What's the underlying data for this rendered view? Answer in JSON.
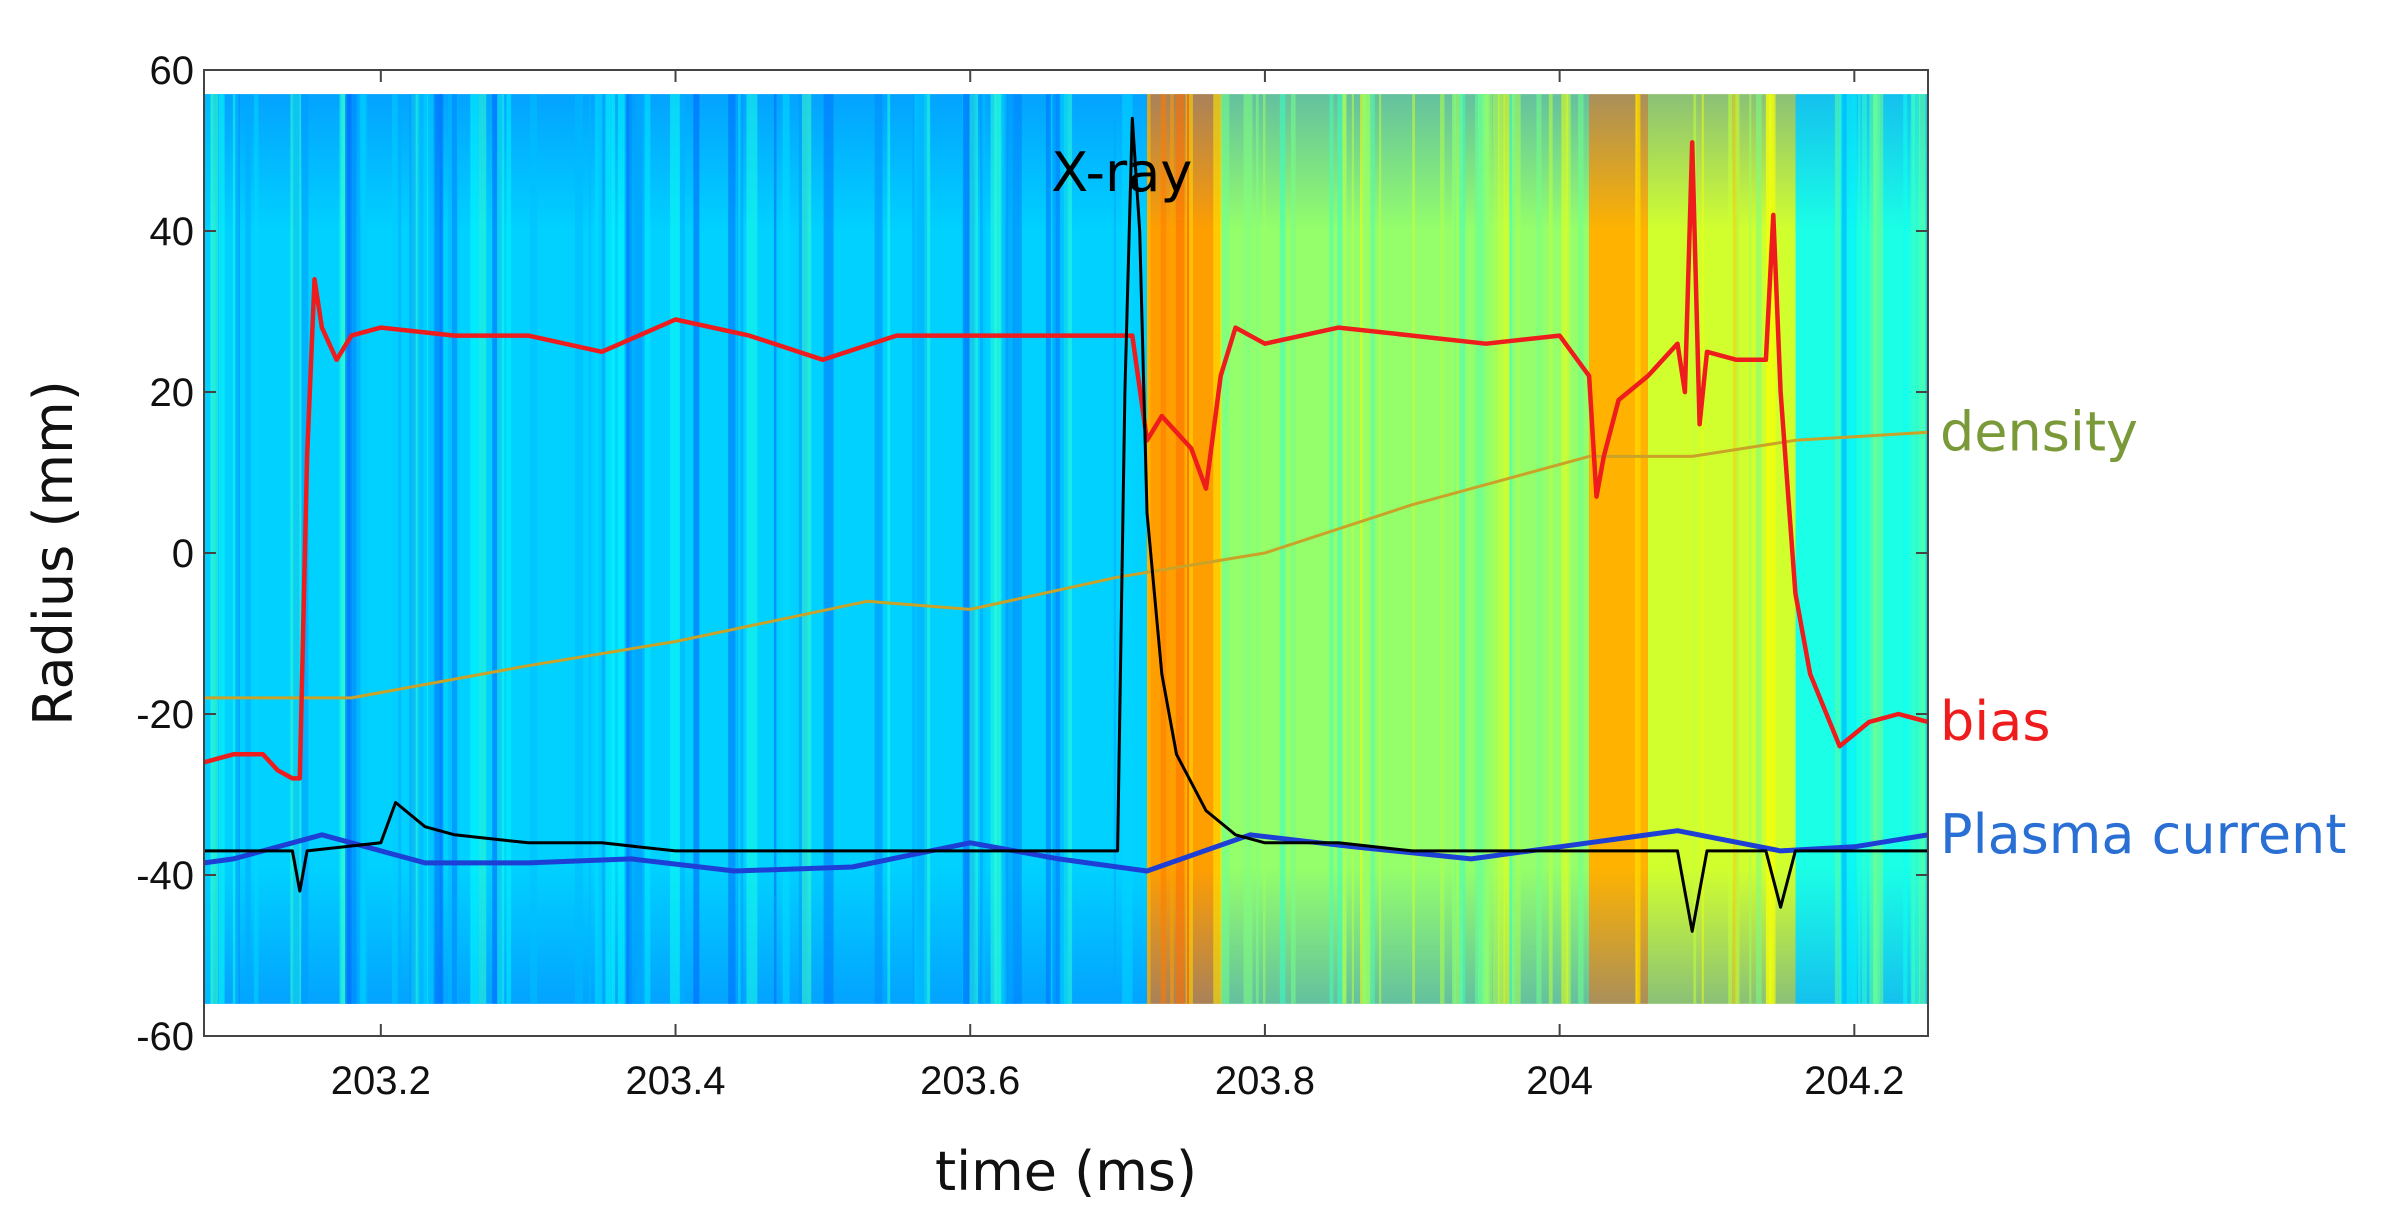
{
  "chart_data": {
    "type": "heatmap",
    "xlabel": "time (ms)",
    "ylabel": "Radius (mm)",
    "xlim": [
      203.08,
      204.25
    ],
    "ylim": [
      -60,
      60
    ],
    "heatmap_ylim": [
      -56,
      57
    ],
    "x_ticks": [
      {
        "value": 203.2,
        "label": "203.2"
      },
      {
        "value": 203.4,
        "label": "203.4"
      },
      {
        "value": 203.6,
        "label": "203.6"
      },
      {
        "value": 203.8,
        "label": "203.8"
      },
      {
        "value": 204.0,
        "label": "204"
      },
      {
        "value": 204.2,
        "label": "204.2"
      }
    ],
    "y_ticks": [
      {
        "value": 60,
        "label": "60"
      },
      {
        "value": 40,
        "label": "40"
      },
      {
        "value": 20,
        "label": "20"
      },
      {
        "value": 0,
        "label": "0"
      },
      {
        "value": -20,
        "label": "-20"
      },
      {
        "value": -40,
        "label": "-40"
      },
      {
        "value": -60,
        "label": "-60"
      }
    ],
    "grid": false,
    "heatmap": {
      "colormap": "jet",
      "description_bands": [
        {
          "from": 203.08,
          "to": 203.72,
          "level": 0.33
        },
        {
          "from": 203.72,
          "to": 203.77,
          "level": 0.72
        },
        {
          "from": 203.77,
          "to": 204.02,
          "level": 0.52
        },
        {
          "from": 204.02,
          "to": 204.06,
          "level": 0.7
        },
        {
          "from": 204.06,
          "to": 204.16,
          "level": 0.58
        },
        {
          "from": 204.16,
          "to": 204.25,
          "level": 0.4
        }
      ]
    },
    "series": [
      {
        "name": "density",
        "color": "#c9a227",
        "label_color": "#7a9a3a",
        "x": [
          203.08,
          203.18,
          203.3,
          203.4,
          203.53,
          203.6,
          203.7,
          203.8,
          203.9,
          204.02,
          204.09,
          204.16,
          204.25
        ],
        "y": [
          -18,
          -18,
          -14,
          -11,
          -6,
          -7,
          -3,
          0,
          6,
          12,
          12,
          14,
          15
        ]
      },
      {
        "name": "bias",
        "color": "#ee1c1c",
        "label_color": "#ee1c1c",
        "x": [
          203.08,
          203.1,
          203.12,
          203.13,
          203.14,
          203.145,
          203.15,
          203.155,
          203.16,
          203.17,
          203.18,
          203.2,
          203.25,
          203.3,
          203.35,
          203.4,
          203.45,
          203.5,
          203.55,
          203.6,
          203.65,
          203.7,
          203.71,
          203.72,
          203.73,
          203.74,
          203.75,
          203.76,
          203.77,
          203.78,
          203.8,
          203.85,
          203.9,
          203.95,
          204.0,
          204.02,
          204.025,
          204.03,
          204.04,
          204.06,
          204.08,
          204.085,
          204.09,
          204.095,
          204.1,
          204.12,
          204.14,
          204.145,
          204.15,
          204.16,
          204.17,
          204.19,
          204.21,
          204.23,
          204.25
        ],
        "y": [
          -26,
          -25,
          -25,
          -27,
          -28,
          -28,
          12,
          34,
          28,
          24,
          27,
          28,
          27,
          27,
          25,
          29,
          27,
          24,
          27,
          27,
          27,
          27,
          27,
          14,
          17,
          15,
          13,
          8,
          22,
          28,
          26,
          28,
          27,
          26,
          27,
          22,
          7,
          12,
          19,
          22,
          26,
          20,
          51,
          16,
          25,
          24,
          24,
          42,
          20,
          -5,
          -15,
          -24,
          -21,
          -20,
          -21
        ]
      },
      {
        "name": "Plasma current",
        "color": "#1d3fd6",
        "label_color": "#2a6fd4",
        "x": [
          203.08,
          203.1,
          203.16,
          203.23,
          203.3,
          203.37,
          203.44,
          203.52,
          203.6,
          203.66,
          203.72,
          203.79,
          203.86,
          203.94,
          204.0,
          204.08,
          204.15,
          204.2,
          204.25
        ],
        "y": [
          -38.5,
          -38,
          -35,
          -38.5,
          -38.5,
          -38,
          -39.5,
          -39,
          -36,
          -38,
          -39.5,
          -35,
          -36.5,
          -38,
          -36.5,
          -34.5,
          -37,
          -36.5,
          -35
        ]
      },
      {
        "name": "X-ray",
        "color": "#000000",
        "label_color": "#000000",
        "x": [
          203.08,
          203.13,
          203.14,
          203.145,
          203.15,
          203.2,
          203.21,
          203.23,
          203.25,
          203.3,
          203.35,
          203.4,
          203.5,
          203.6,
          203.7,
          203.705,
          203.71,
          203.715,
          203.72,
          203.73,
          203.74,
          203.76,
          203.78,
          203.8,
          203.85,
          203.9,
          204.0,
          204.08,
          204.09,
          204.1,
          204.12,
          204.14,
          204.15,
          204.16,
          204.2,
          204.25
        ],
        "y": [
          -37,
          -37,
          -37,
          -42,
          -37,
          -36,
          -31,
          -34,
          -35,
          -36,
          -36,
          -37,
          -37,
          -37,
          -37,
          20,
          54,
          40,
          5,
          -15,
          -25,
          -32,
          -35,
          -36,
          -36,
          -37,
          -37,
          -37,
          -47,
          -37,
          -37,
          -37,
          -44,
          -37,
          -37,
          -37
        ]
      }
    ],
    "annotations": [
      {
        "text": "X-ray",
        "x": 203.655,
        "y": 45
      },
      {
        "text": "density",
        "series": "density"
      },
      {
        "text": "bias",
        "series": "bias"
      },
      {
        "text": "Plasma current",
        "series": "Plasma current"
      }
    ]
  }
}
